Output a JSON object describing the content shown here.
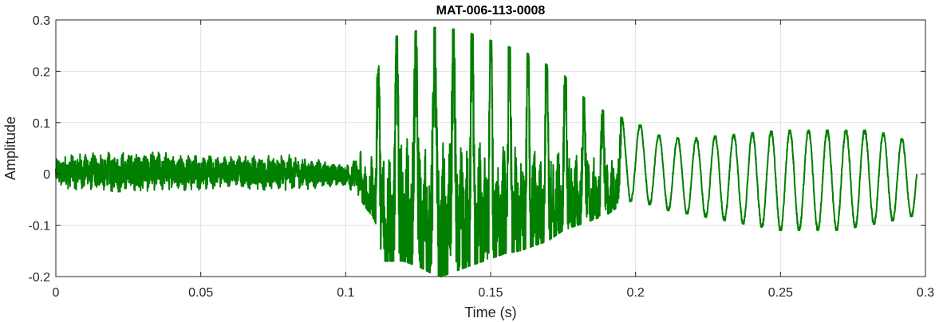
{
  "chart_data": {
    "type": "line",
    "title": "MAT-006-113-0008",
    "xlabel": "Time (s)",
    "ylabel": "Amplitude",
    "xlim": [
      0,
      0.3
    ],
    "ylim": [
      -0.2,
      0.3
    ],
    "x_ticks": [
      0,
      0.05,
      0.1,
      0.15,
      0.2,
      0.25,
      0.3
    ],
    "x_tick_labels": [
      "0",
      "0.05",
      "0.1",
      "0.15",
      "0.2",
      "0.25",
      "0.3"
    ],
    "y_ticks": [
      -0.2,
      -0.1,
      0,
      0.1,
      0.2,
      0.3
    ],
    "y_tick_labels": [
      "-0.2",
      "-0.1",
      "0",
      "0.1",
      "0.2",
      "0.3"
    ],
    "grid": true,
    "series": [
      {
        "color": "#007f00",
        "x": [
          0,
          0.01,
          0.02,
          0.03,
          0.04,
          0.05,
          0.06,
          0.07,
          0.08,
          0.09,
          0.1,
          0.105,
          0.11,
          0.113,
          0.12,
          0.125,
          0.13,
          0.133,
          0.14,
          0.145,
          0.15,
          0.155,
          0.16,
          0.165,
          0.17,
          0.175,
          0.18,
          0.185,
          0.19,
          0.195,
          0.2,
          0.21,
          0.22,
          0.23,
          0.24,
          0.25,
          0.26,
          0.27,
          0.28,
          0.29,
          0.297
        ],
        "upper_envelope": [
          0.035,
          0.045,
          0.045,
          0.048,
          0.045,
          0.04,
          0.038,
          0.04,
          0.04,
          0.03,
          0.02,
          0.04,
          0.16,
          0.265,
          0.27,
          0.28,
          0.285,
          0.285,
          0.28,
          0.27,
          0.26,
          0.25,
          0.24,
          0.23,
          0.21,
          0.195,
          0.16,
          0.135,
          0.12,
          0.11,
          0.1,
          0.07,
          0.07,
          0.075,
          0.08,
          0.085,
          0.085,
          0.085,
          0.085,
          0.075,
          0.05
        ],
        "lower_envelope": [
          -0.03,
          -0.035,
          -0.04,
          -0.04,
          -0.035,
          -0.035,
          -0.03,
          -0.035,
          -0.035,
          -0.03,
          -0.025,
          -0.05,
          -0.09,
          -0.17,
          -0.17,
          -0.18,
          -0.195,
          -0.2,
          -0.185,
          -0.175,
          -0.165,
          -0.155,
          -0.15,
          -0.14,
          -0.13,
          -0.11,
          -0.1,
          -0.09,
          -0.08,
          -0.06,
          -0.05,
          -0.07,
          -0.08,
          -0.09,
          -0.1,
          -0.11,
          -0.11,
          -0.11,
          -0.1,
          -0.09,
          -0.08
        ],
        "tonal_frequency_hz": 155
      }
    ]
  }
}
